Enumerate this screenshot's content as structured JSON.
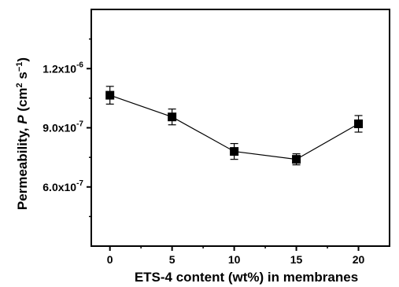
{
  "chart_data": {
    "type": "line",
    "title": "",
    "xlabel": "ETS-4 content (wt%) in membranes",
    "ylabel": {
      "prefix": "Permeability, ",
      "symbol": "P",
      "open": " (cm",
      "sup1": "2",
      "mid": " s",
      "sup2": "−1",
      "close": ")"
    },
    "x": [
      0,
      5,
      10,
      15,
      20
    ],
    "xlim": [
      -1.5,
      22.5
    ],
    "ylim": [
      3e-07,
      1.5e-06
    ],
    "x_ticks": [
      0,
      5,
      10,
      15,
      20
    ],
    "x_tick_labels": [
      "0",
      "5",
      "10",
      "15",
      "20"
    ],
    "y_ticks": [
      {
        "value": 6e-07,
        "mantissa": "6.0x10",
        "exponent": "-7"
      },
      {
        "value": 9e-07,
        "mantissa": "9.0x10",
        "exponent": "-7"
      },
      {
        "value": 1.2e-06,
        "mantissa": "1.2x10",
        "exponent": "-6"
      }
    ],
    "series": [
      {
        "values": [
          1.065e-06,
          9.55e-07,
          7.8e-07,
          7.4e-07,
          9.2e-07
        ],
        "errors": [
          4.5e-08,
          4e-08,
          4e-08,
          2.8e-08,
          4.2e-08
        ],
        "marker": "square",
        "color": "#000000"
      }
    ],
    "grid": false,
    "legend": "none"
  }
}
